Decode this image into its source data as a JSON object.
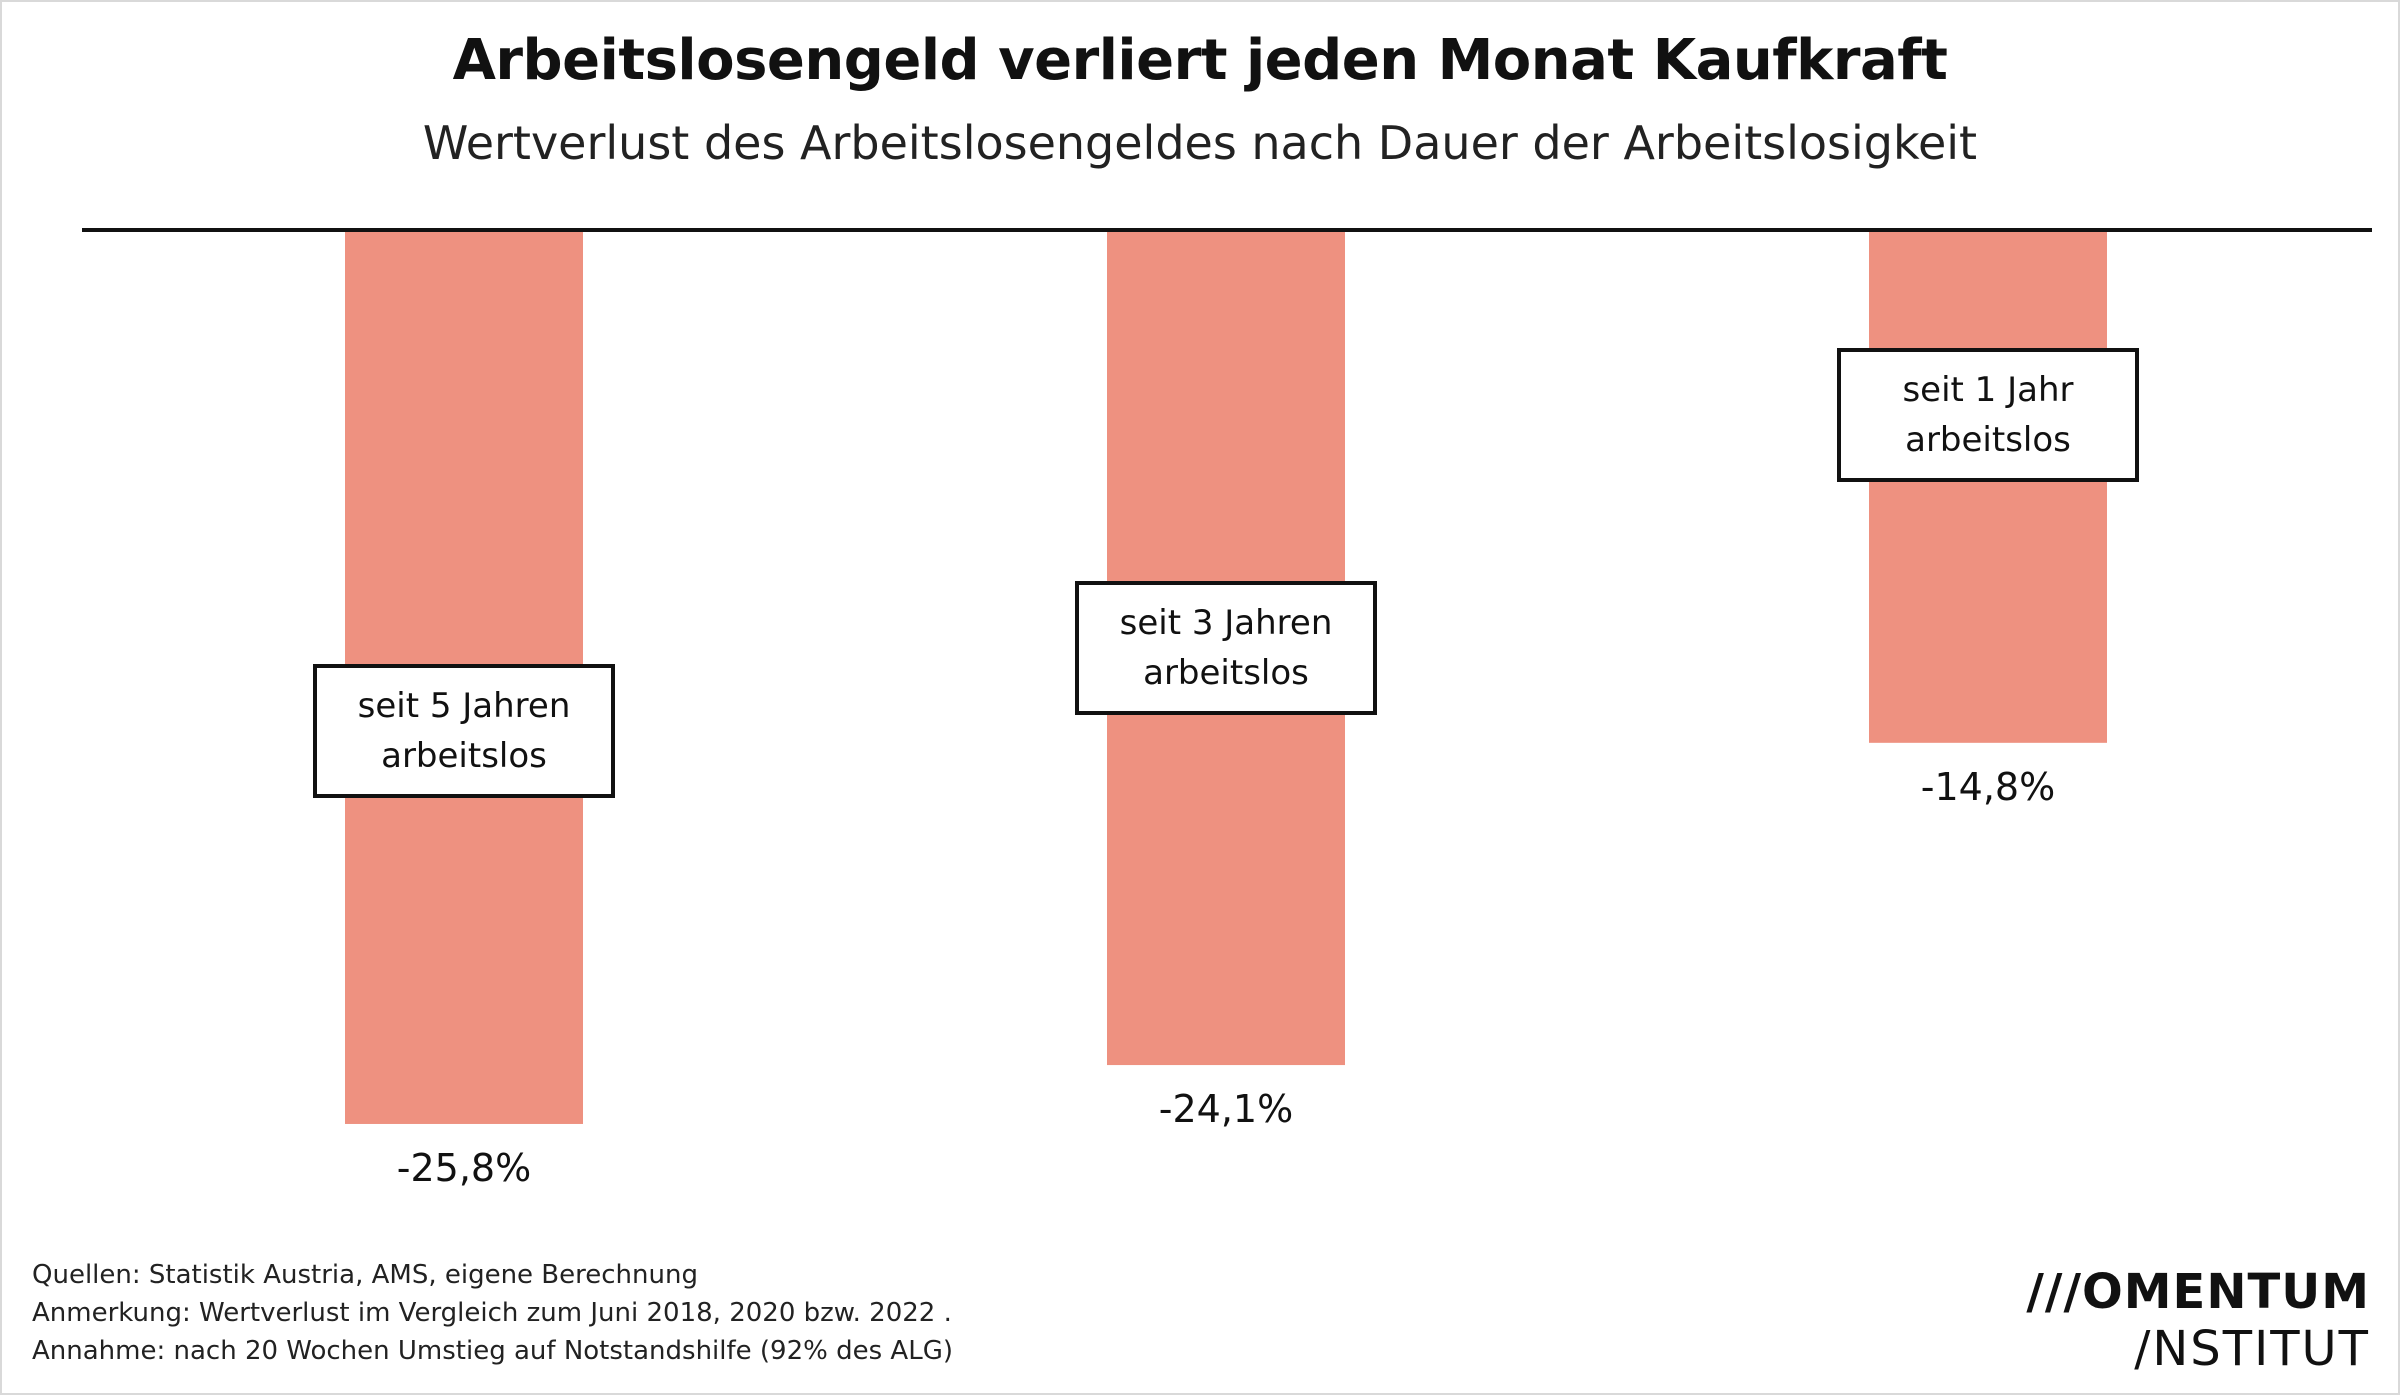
{
  "header": {
    "title": "Arbeitslosengeld verliert jeden Monat Kaufkraft",
    "subtitle": "Wertverlust des Arbeitslosengeldes nach Dauer der Arbeitslosigkeit"
  },
  "chart_data": {
    "type": "bar",
    "orientation": "vertical-negative",
    "categories": [
      [
        "seit 5 Jahren",
        "arbeitslos"
      ],
      [
        "seit 3 Jahren",
        "arbeitslos"
      ],
      [
        "seit 1 Jahr",
        "arbeitslos"
      ]
    ],
    "values": [
      -25.8,
      -24.1,
      -14.8
    ],
    "value_labels": [
      "-25,8%",
      "-24,1%",
      "-14,8%"
    ],
    "ylim": [
      -27,
      0
    ],
    "grid": false,
    "bar_color": "#EE9180",
    "baseline_color": "#111111"
  },
  "footer": {
    "notes": [
      "Quellen: Statistik Austria, AMS, eigene Berechnung",
      "Anmerkung: Wertverlust im Vergleich zum Juni 2018, 2020 bzw. 2022 .",
      "Annahme: nach 20 Wochen Umstieg auf Notstandshilfe (92% des ALG)"
    ],
    "logo_line1": "///OMENTUM",
    "logo_line2": "/NSTITUT"
  }
}
